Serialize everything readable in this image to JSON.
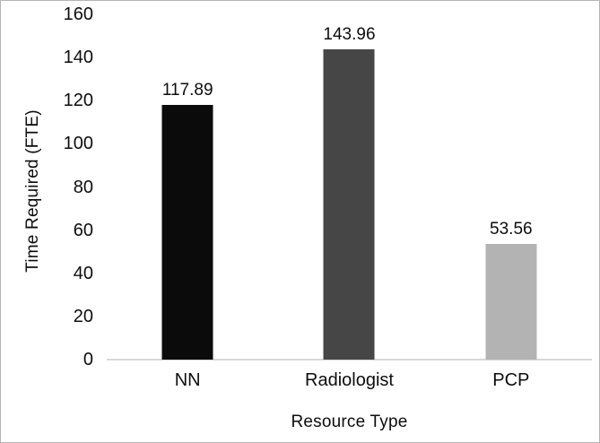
{
  "figure": {
    "background": "#ffffff",
    "border_color": "#b5b5b5",
    "text_color": "#0d0d0d"
  },
  "chart_data": {
    "type": "bar",
    "title": "",
    "xlabel": "Resource Type",
    "ylabel": "Time Required (FTE)",
    "categories": [
      "NN",
      "Radiologist",
      "PCP"
    ],
    "values": [
      117.89,
      143.96,
      53.56
    ],
    "value_labels": [
      "117.89",
      "143.96",
      "53.56"
    ],
    "bar_colors": [
      "#0b0b0b",
      "#464646",
      "#b3b3b3"
    ],
    "ylim": [
      0,
      160
    ],
    "yticks": [
      0,
      20,
      40,
      60,
      80,
      100,
      120,
      140,
      160
    ],
    "ytick_labels": [
      "0",
      "20",
      "40",
      "60",
      "80",
      "100",
      "120",
      "140",
      "160"
    ],
    "grid": false,
    "legend": false,
    "axis_line_color": "#d8d8d8"
  }
}
